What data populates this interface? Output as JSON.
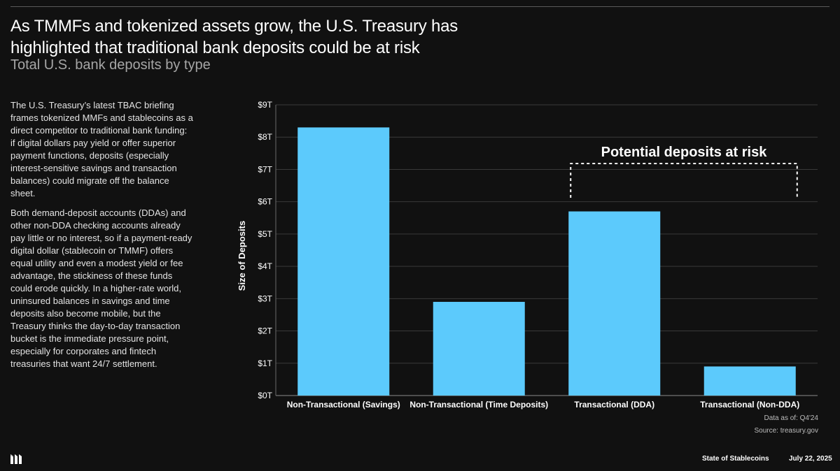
{
  "header": {
    "title": "As TMMFs and tokenized assets grow, the U.S. Treasury has highlighted that traditional bank deposits could be at risk",
    "subtitle": "Total U.S. bank deposits by type"
  },
  "body": {
    "paragraph_1": "The U.S. Treasury’s latest TBAC briefing frames tokenized MMFs and stablecoins as a direct competitor to traditional bank funding: if digital dollars pay yield or offer superior payment functions, deposits (especially interest-sensitive savings and transaction balances) could migrate off the balance sheet.",
    "paragraph_2": "Both demand-deposit accounts (DDAs) and other non-DDA checking accounts already pay little or no interest, so if a payment-ready digital dollar (stablecoin or TMMF) offers equal utility and even a modest yield or fee advantage, the stickiness of these funds could erode quickly. In a higher-rate world, uninsured balances in savings and time deposits also become mobile, but the Treasury thinks the day-to-day transaction bucket is the immediate pressure point, especially for corporates and fintech treasuries that want 24/7 settlement."
  },
  "chart_data": {
    "type": "bar",
    "categories": [
      "Non-Transactional (Savings)",
      "Non-Transactional (Time Deposits)",
      "Transactional (DDA)",
      "Transactional (Non-DDA)"
    ],
    "values": [
      8.3,
      2.9,
      5.7,
      0.9
    ],
    "ylabel": "Size of Deposits",
    "ylim": [
      0,
      9
    ],
    "yticks": [
      "$0T",
      "$1T",
      "$2T",
      "$3T",
      "$4T",
      "$5T",
      "$6T",
      "$7T",
      "$8T",
      "$9T"
    ],
    "grid": true,
    "bar_color": "#5ccafc",
    "annotation": {
      "text": "Potential deposits at risk",
      "spans_categories": [
        "Transactional (DDA)",
        "Transactional (Non-DDA)"
      ]
    }
  },
  "notes": {
    "data_as_of": "Data as of: Q4'24",
    "source": "Source: treasury.gov"
  },
  "footer": {
    "logo_icon": "messari-logo-icon",
    "report": "State of Stablecoins",
    "date": "July 22, 2025"
  }
}
